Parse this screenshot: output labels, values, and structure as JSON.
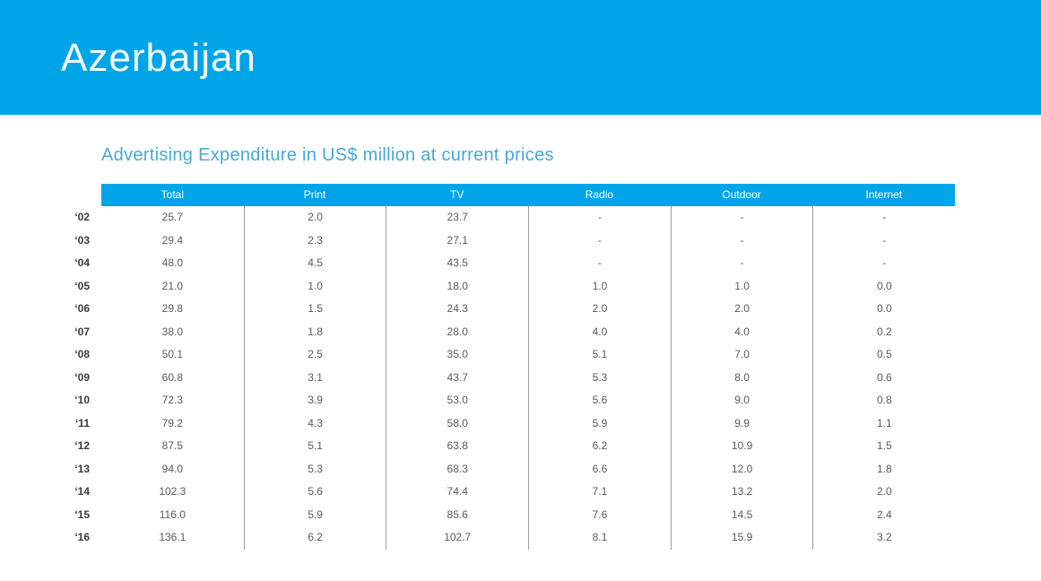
{
  "banner": {
    "title": "Azerbaijan",
    "background_color": "#00a5e8"
  },
  "subtitle": "Advertising Expenditure in US$ million at current prices",
  "colors": {
    "accent_blue": "#00a5e8",
    "subtitle_blue": "#45a9da",
    "cell_text": "#595a5c",
    "divider": "#9c9c9c"
  },
  "table": {
    "columns": [
      "Total",
      "Print",
      "TV",
      "Radio",
      "Outdoor",
      "Internet"
    ],
    "rows": [
      {
        "year": "‘02",
        "values": [
          "25.7",
          "2.0",
          "23.7",
          "-",
          "-",
          "-"
        ]
      },
      {
        "year": "‘03",
        "values": [
          "29.4",
          "2.3",
          "27.1",
          "-",
          "-",
          "-"
        ]
      },
      {
        "year": "‘04",
        "values": [
          "48.0",
          "4.5",
          "43.5",
          "-",
          "-",
          "-"
        ]
      },
      {
        "year": "‘05",
        "values": [
          "21.0",
          "1.0",
          "18.0",
          "1.0",
          "1.0",
          "0.0"
        ]
      },
      {
        "year": "‘06",
        "values": [
          "29.8",
          "1.5",
          "24.3",
          "2.0",
          "2.0",
          "0.0"
        ]
      },
      {
        "year": "‘07",
        "values": [
          "38.0",
          "1.8",
          "28.0",
          "4.0",
          "4.0",
          "0.2"
        ]
      },
      {
        "year": "‘08",
        "values": [
          "50.1",
          "2.5",
          "35.0",
          "5.1",
          "7.0",
          "0.5"
        ]
      },
      {
        "year": "‘09",
        "values": [
          "60.8",
          "3.1",
          "43.7",
          "5.3",
          "8.0",
          "0.6"
        ]
      },
      {
        "year": "‘10",
        "values": [
          "72.3",
          "3.9",
          "53.0",
          "5.6",
          "9.0",
          "0.8"
        ]
      },
      {
        "year": "‘11",
        "values": [
          "79.2",
          "4.3",
          "58.0",
          "5.9",
          "9.9",
          "1.1"
        ]
      },
      {
        "year": "‘12",
        "values": [
          "87.5",
          "5.1",
          "63.8",
          "6.2",
          "10.9",
          "1.5"
        ]
      },
      {
        "year": "‘13",
        "values": [
          "94.0",
          "5.3",
          "68.3",
          "6.6",
          "12.0",
          "1.8"
        ]
      },
      {
        "year": "‘14",
        "values": [
          "102.3",
          "5.6",
          "74.4",
          "7.1",
          "13.2",
          "2.0"
        ]
      },
      {
        "year": "‘15",
        "values": [
          "116.0",
          "5.9",
          "85.6",
          "7.6",
          "14.5",
          "2.4"
        ]
      },
      {
        "year": "‘16",
        "values": [
          "136.1",
          "6.2",
          "102.7",
          "8.1",
          "15.9",
          "3.2"
        ]
      }
    ]
  }
}
